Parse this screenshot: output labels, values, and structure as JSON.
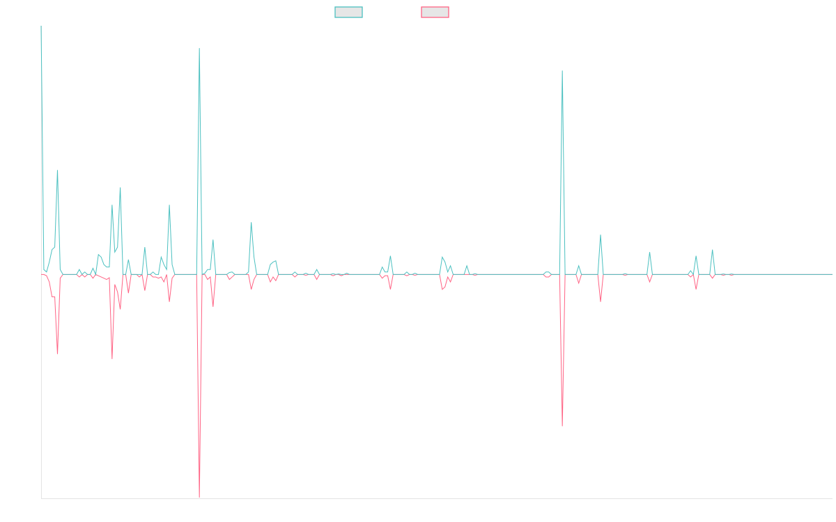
{
  "chart_data": {
    "type": "line",
    "title": "",
    "xlabel": "",
    "ylabel": "",
    "xlim": [
      0,
      290
    ],
    "ylim": [
      -90,
      100
    ],
    "grid": false,
    "legend_position": "top-center",
    "series": [
      {
        "name": "",
        "color": "#4bc0c0",
        "points": [
          [
            0,
            100
          ],
          [
            1,
            2
          ],
          [
            2,
            1
          ],
          [
            3,
            5
          ],
          [
            4,
            10
          ],
          [
            5,
            11
          ],
          [
            6,
            42
          ],
          [
            7,
            2
          ],
          [
            8,
            0
          ],
          [
            14,
            2
          ],
          [
            15,
            0
          ],
          [
            16,
            1
          ],
          [
            17,
            0
          ],
          [
            19,
            2.5
          ],
          [
            20,
            0
          ],
          [
            21,
            8
          ],
          [
            22,
            7
          ],
          [
            23,
            4
          ],
          [
            24,
            3
          ],
          [
            25,
            3
          ],
          [
            26,
            28
          ],
          [
            27,
            9
          ],
          [
            28,
            11
          ],
          [
            29,
            35
          ],
          [
            30,
            0
          ],
          [
            32,
            6
          ],
          [
            33,
            0
          ],
          [
            38,
            11
          ],
          [
            39,
            0
          ],
          [
            41,
            1
          ],
          [
            42,
            0
          ],
          [
            44,
            7
          ],
          [
            45,
            4
          ],
          [
            46,
            2
          ],
          [
            47,
            28
          ],
          [
            48,
            4
          ],
          [
            49,
            0
          ],
          [
            58,
            91
          ],
          [
            59,
            0
          ],
          [
            60,
            0.5
          ],
          [
            61,
            2
          ],
          [
            62,
            2
          ],
          [
            63,
            14
          ],
          [
            64,
            0
          ],
          [
            69,
            0.8
          ],
          [
            70,
            1
          ],
          [
            71,
            0
          ],
          [
            76,
            1
          ],
          [
            77,
            21
          ],
          [
            78,
            7
          ],
          [
            79,
            0
          ],
          [
            84,
            4
          ],
          [
            85,
            5
          ],
          [
            86,
            5.5
          ],
          [
            87,
            0
          ],
          [
            93,
            1
          ],
          [
            94,
            0
          ],
          [
            97,
            0.5
          ],
          [
            98,
            0
          ],
          [
            101,
            2
          ],
          [
            102,
            0
          ],
          [
            107,
            0.3
          ],
          [
            109,
            0.2
          ],
          [
            112,
            0.5
          ],
          [
            113,
            0
          ],
          [
            125,
            3
          ],
          [
            126,
            1
          ],
          [
            127,
            1
          ],
          [
            128,
            7.5
          ],
          [
            129,
            0
          ],
          [
            134,
            1
          ],
          [
            135,
            0
          ],
          [
            137,
            0.5
          ],
          [
            138,
            0
          ],
          [
            147,
            7
          ],
          [
            148,
            5
          ],
          [
            149,
            1
          ],
          [
            150,
            3.5
          ],
          [
            151,
            0
          ],
          [
            156,
            3.5
          ],
          [
            157,
            0
          ],
          [
            159,
            0.3
          ],
          [
            160,
            0
          ],
          [
            185,
            1
          ],
          [
            186,
            1
          ],
          [
            187,
            0
          ],
          [
            191,
            82
          ],
          [
            192,
            0
          ],
          [
            197,
            3.5
          ],
          [
            198,
            0
          ],
          [
            205,
            16
          ],
          [
            206,
            0
          ],
          [
            214,
            0.3
          ],
          [
            223,
            9
          ],
          [
            224,
            0
          ],
          [
            238,
            1.5
          ],
          [
            239,
            0
          ],
          [
            240,
            7.5
          ],
          [
            241,
            0
          ],
          [
            246,
            10
          ],
          [
            247,
            0
          ],
          [
            250,
            0.2
          ],
          [
            253,
            0.2
          ],
          [
            254,
            0
          ]
        ]
      },
      {
        "name": "",
        "color": "#ff6384",
        "points": [
          [
            0,
            0
          ],
          [
            1,
            0
          ],
          [
            2,
            -0.5
          ],
          [
            3,
            -3
          ],
          [
            4,
            -9
          ],
          [
            5,
            -9
          ],
          [
            6,
            -32
          ],
          [
            7,
            -1.5
          ],
          [
            8,
            0
          ],
          [
            14,
            -1
          ],
          [
            15,
            0
          ],
          [
            16,
            -1
          ],
          [
            17,
            0
          ],
          [
            19,
            -1.5
          ],
          [
            20,
            0
          ],
          [
            21,
            -0.5
          ],
          [
            22,
            -1
          ],
          [
            23,
            -1.5
          ],
          [
            24,
            -2
          ],
          [
            25,
            -1.3
          ],
          [
            26,
            -34
          ],
          [
            27,
            -4
          ],
          [
            28,
            -7
          ],
          [
            29,
            -14
          ],
          [
            30,
            0
          ],
          [
            32,
            -7.5
          ],
          [
            33,
            0
          ],
          [
            36,
            -1
          ],
          [
            38,
            -6.5
          ],
          [
            39,
            0
          ],
          [
            41,
            -1
          ],
          [
            42,
            -1
          ],
          [
            43,
            -1.5
          ],
          [
            44,
            -1
          ],
          [
            45,
            -3
          ],
          [
            46,
            0
          ],
          [
            47,
            -11
          ],
          [
            48,
            -1.5
          ],
          [
            49,
            0
          ],
          [
            58,
            -89.7
          ],
          [
            59,
            0
          ],
          [
            61,
            -2
          ],
          [
            62,
            -1
          ],
          [
            63,
            -13
          ],
          [
            64,
            0
          ],
          [
            69,
            -2
          ],
          [
            70,
            -1
          ],
          [
            71,
            0
          ],
          [
            77,
            -6
          ],
          [
            78,
            -2
          ],
          [
            79,
            0
          ],
          [
            84,
            -3
          ],
          [
            85,
            -1
          ],
          [
            86,
            -2.5
          ],
          [
            87,
            0
          ],
          [
            93,
            -1
          ],
          [
            94,
            0
          ],
          [
            97,
            -0.3
          ],
          [
            98,
            0
          ],
          [
            101,
            -2
          ],
          [
            102,
            0
          ],
          [
            107,
            -0.5
          ],
          [
            108,
            0
          ],
          [
            110,
            -0.5
          ],
          [
            111,
            0
          ],
          [
            125,
            -1.5
          ],
          [
            126,
            -0.5
          ],
          [
            127,
            -0.5
          ],
          [
            128,
            -6
          ],
          [
            129,
            0
          ],
          [
            134,
            -0.5
          ],
          [
            135,
            0
          ],
          [
            137,
            -0.3
          ],
          [
            138,
            0
          ],
          [
            147,
            -6
          ],
          [
            148,
            -5
          ],
          [
            149,
            -1
          ],
          [
            150,
            -3
          ],
          [
            151,
            0
          ],
          [
            159,
            -0.3
          ],
          [
            160,
            0
          ],
          [
            185,
            -1
          ],
          [
            186,
            -1
          ],
          [
            187,
            0
          ],
          [
            191,
            -61
          ],
          [
            192,
            0
          ],
          [
            197,
            -3.5
          ],
          [
            198,
            0
          ],
          [
            205,
            -11
          ],
          [
            206,
            0
          ],
          [
            214,
            -0.3
          ],
          [
            223,
            -3
          ],
          [
            224,
            0
          ],
          [
            238,
            -1
          ],
          [
            239,
            0
          ],
          [
            240,
            -6
          ],
          [
            241,
            0
          ],
          [
            246,
            -1.5
          ],
          [
            247,
            0
          ],
          [
            250,
            -0.3
          ],
          [
            253,
            -0.3
          ],
          [
            254,
            0
          ]
        ]
      }
    ]
  }
}
